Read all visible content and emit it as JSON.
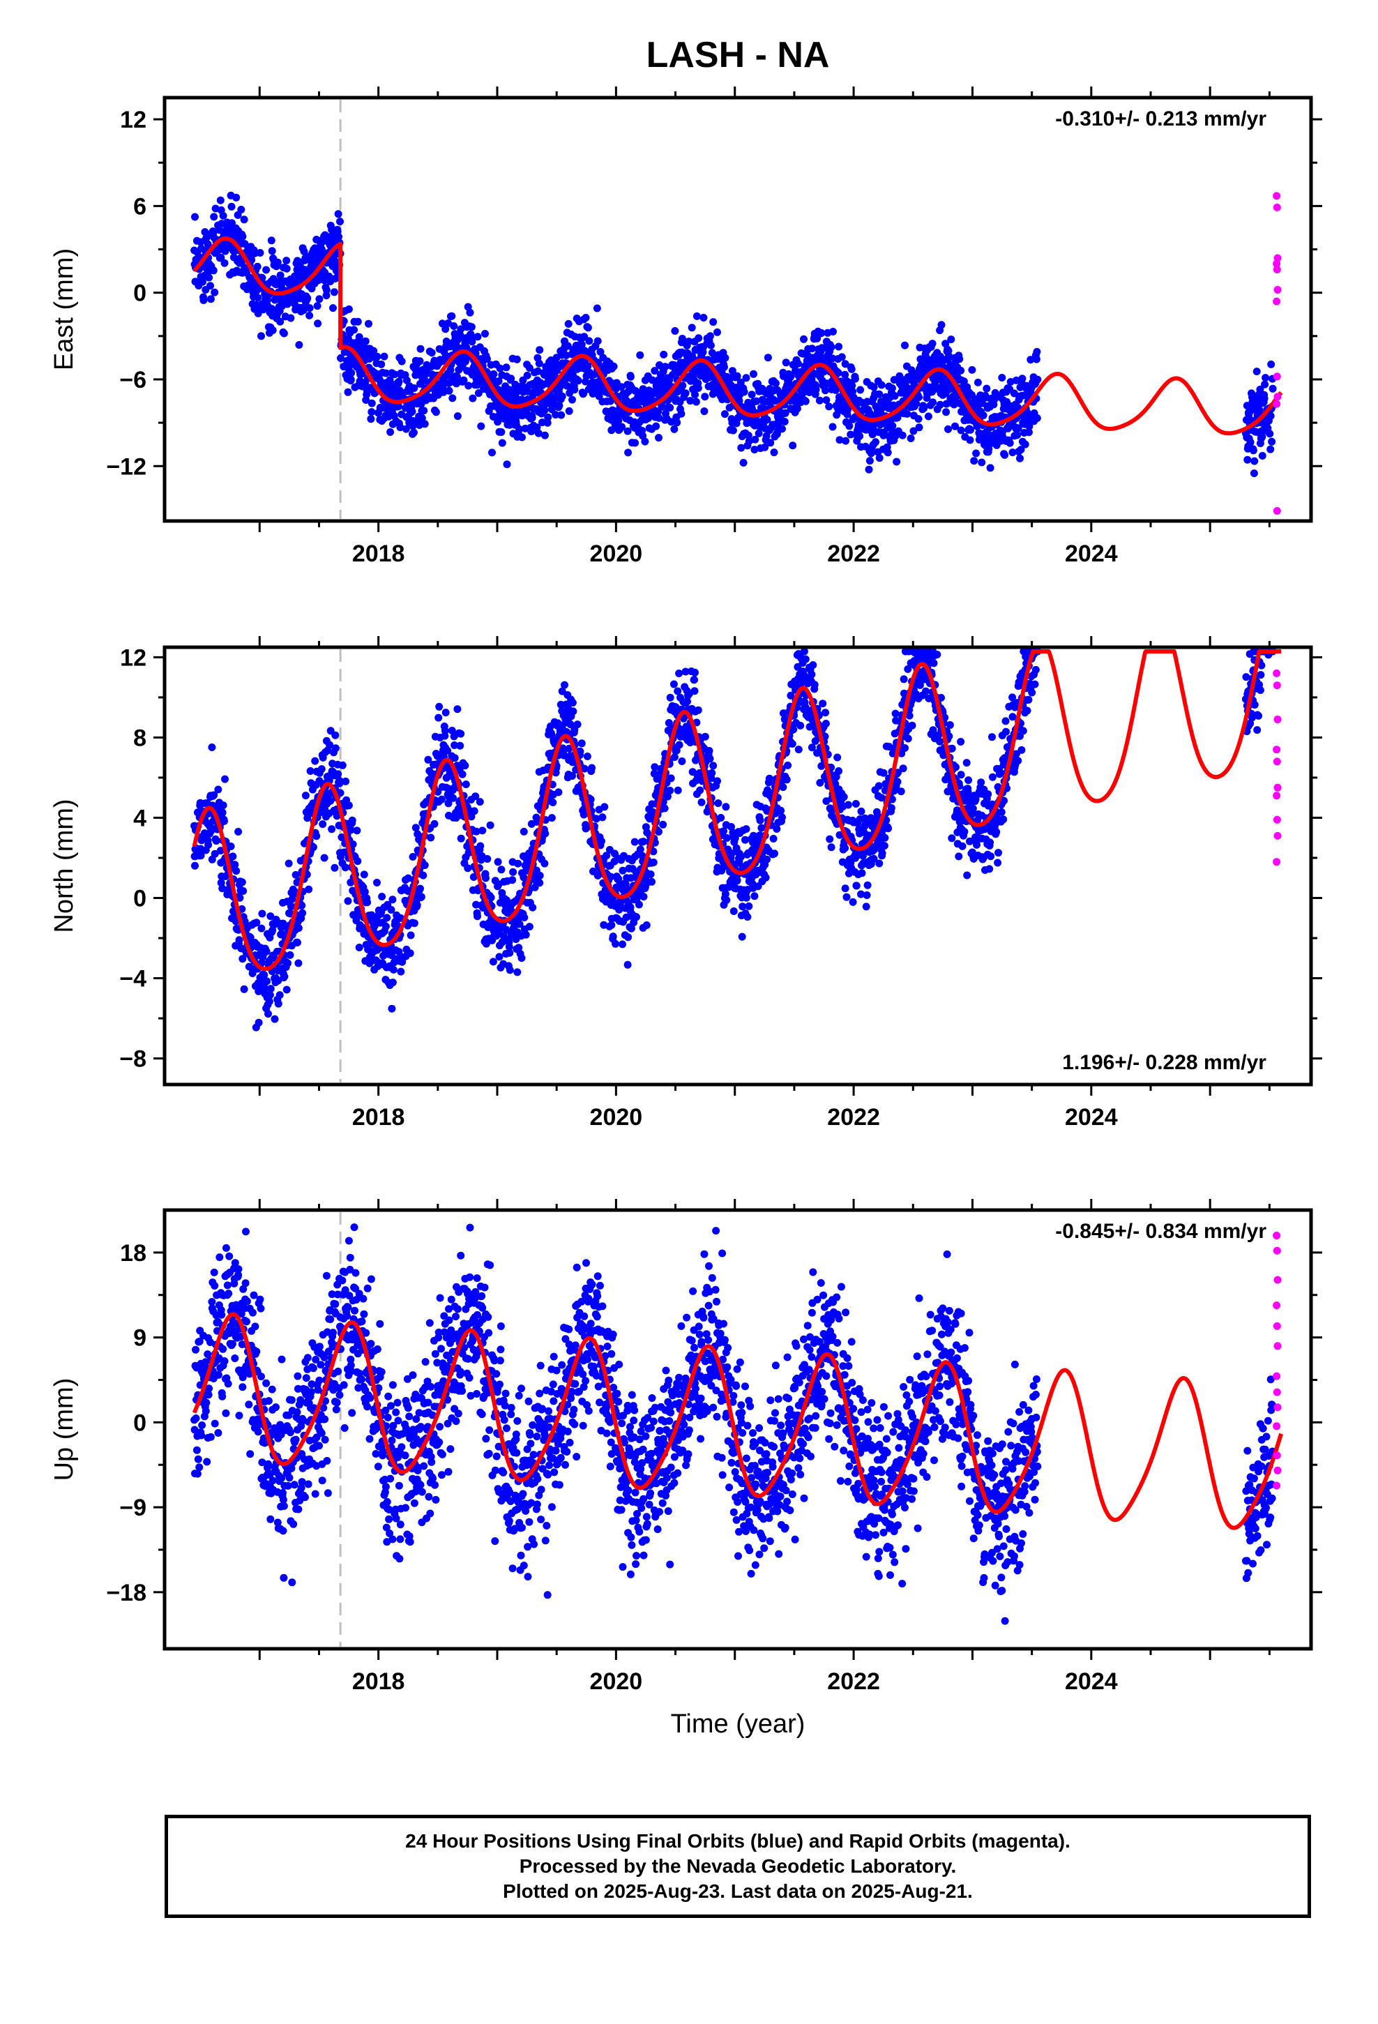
{
  "title": "LASH - NA",
  "xlabel": "Time (year)",
  "xticks": [
    2018,
    2020,
    2022,
    2024
  ],
  "colors": {
    "final": "#0000ff",
    "rapid": "#ff00ff",
    "model": "#ff0000",
    "offset": "#c0c0c0"
  },
  "footer": {
    "line1": "24 Hour Positions Using Final Orbits (blue) and Rapid Orbits (magenta).",
    "line2": "Processed by the Nevada Geodetic Laboratory.",
    "line3": "Plotted on 2025-Aug-23. Last data on 2025-Aug-21."
  },
  "chart_data": [
    {
      "type": "scatter",
      "component": "east",
      "ylabel": "East (mm)",
      "rate": "-0.310+/- 0.213 mm/yr",
      "rate_position": "top-right",
      "xlim": [
        2016.2,
        2025.85
      ],
      "ylim": [
        -15.8,
        13.5
      ],
      "yticks": [
        12,
        6,
        0,
        -6,
        -12
      ],
      "offset_epoch": 2017.68,
      "model": {
        "rate": -0.31,
        "intercept": 1.75,
        "offset": -7.2,
        "annual_amplitude": 1.8,
        "annual_phase": 2016.45,
        "semiannual_amplitude": 0.3,
        "semiannual_phase": 2016.62
      },
      "noise_sd": 1.3,
      "rapid_points": [
        6.7,
        5.9,
        2.4,
        2.0,
        1.6,
        0.2,
        -0.6,
        -5.8,
        -7.2,
        -7.7,
        -15.1
      ],
      "grid": false
    },
    {
      "type": "scatter",
      "component": "north",
      "ylabel": "North (mm)",
      "rate": "1.196+/- 0.228 mm/yr",
      "rate_position": "bottom-right",
      "xlim": [
        2016.2,
        2025.85
      ],
      "ylim": [
        -9.3,
        12.5
      ],
      "yticks": [
        12,
        8,
        4,
        0,
        -4,
        -8
      ],
      "offset_epoch": 2017.68,
      "model": {
        "rate": 1.196,
        "intercept": -0.5,
        "offset": 0,
        "annual_amplitude": 4.3,
        "annual_phase": 2016.32,
        "semiannual_amplitude": 0.6,
        "semiannual_phase": 2016.45
      },
      "noise_sd": 1.2,
      "rapid_points": [
        11.2,
        10.6,
        8.9,
        7.4,
        6.8,
        5.5,
        5.1,
        3.9,
        3.1,
        1.8
      ],
      "grid": false
    },
    {
      "type": "scatter",
      "component": "up",
      "ylabel": "Up (mm)",
      "rate": "-0.845+/- 0.834 mm/yr",
      "rate_position": "top-right",
      "xlim": [
        2016.2,
        2025.85
      ],
      "ylim": [
        -24,
        22.5
      ],
      "yticks": [
        18,
        9,
        0,
        -9,
        -18
      ],
      "offset_epoch": 2017.68,
      "model": {
        "rate": -0.845,
        "intercept": 3.3,
        "offset": 0,
        "annual_amplitude": 7.5,
        "annual_phase": 2016.5,
        "semiannual_amplitude": 1.2,
        "semiannual_phase": 2016.7
      },
      "noise_sd": 4.3,
      "rapid_points": [
        19.8,
        18.2,
        15.1,
        12.4,
        10.2,
        8.1,
        4.9,
        3.2,
        1.6,
        -0.4,
        -3.5,
        -5.1,
        -6.7
      ],
      "grid": false
    }
  ]
}
